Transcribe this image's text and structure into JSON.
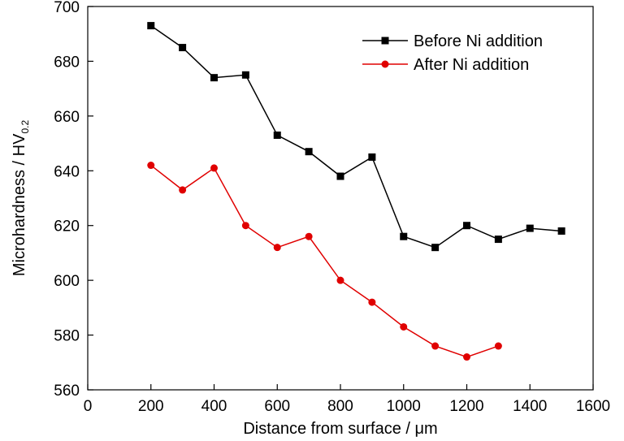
{
  "chart_data": {
    "type": "line",
    "xlabel": "Distance from surface / μm",
    "ylabel": "Microhardness / HV",
    "ylabel_subscript": "0.2",
    "xlim": [
      0,
      1600
    ],
    "ylim": [
      560,
      700
    ],
    "xticks": [
      0,
      200,
      400,
      600,
      800,
      1000,
      1200,
      1400,
      1600
    ],
    "yticks": [
      560,
      580,
      600,
      620,
      640,
      660,
      680,
      700
    ],
    "grid": false,
    "legend_position": "top-right",
    "series": [
      {
        "name": "Before Ni addition",
        "color": "#000000",
        "marker": "square",
        "x": [
          200,
          300,
          400,
          500,
          600,
          700,
          800,
          900,
          1000,
          1100,
          1200,
          1300,
          1400,
          1500
        ],
        "y": [
          693,
          685,
          674,
          675,
          653,
          647,
          638,
          645,
          616,
          612,
          620,
          615,
          619,
          618
        ]
      },
      {
        "name": "After Ni addition",
        "color": "#e00000",
        "marker": "circle",
        "x": [
          200,
          300,
          400,
          500,
          600,
          700,
          800,
          900,
          1000,
          1100,
          1200,
          1300
        ],
        "y": [
          642,
          633,
          641,
          620,
          612,
          616,
          600,
          592,
          583,
          576,
          572,
          576
        ]
      }
    ]
  }
}
